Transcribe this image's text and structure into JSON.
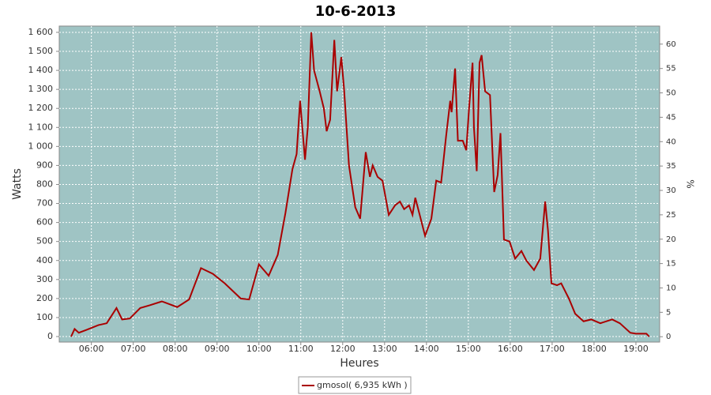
{
  "chart_data": {
    "type": "line",
    "title": "10-6-2013",
    "x_label": "Heures",
    "y_label": "Watts",
    "y2_label": "%",
    "x": [
      "05:31",
      "05:36",
      "05:42",
      "05:53",
      "06:10",
      "06:22",
      "06:36",
      "06:44",
      "06:55",
      "07:10",
      "07:24",
      "07:41",
      "08:03",
      "08:20",
      "08:37",
      "08:54",
      "09:11",
      "09:34",
      "09:46",
      "10:00",
      "10:14",
      "10:27",
      "10:38",
      "10:48",
      "10:54",
      "10:59",
      "11:06",
      "11:10",
      "11:15",
      "11:19",
      "11:27",
      "11:33",
      "11:37",
      "11:42",
      "11:48",
      "11:52",
      "11:58",
      "12:02",
      "12:09",
      "12:18",
      "12:25",
      "12:33",
      "12:39",
      "12:43",
      "12:50",
      "12:57",
      "13:06",
      "13:15",
      "13:22",
      "13:28",
      "13:35",
      "13:40",
      "13:44",
      "13:51",
      "13:58",
      "14:07",
      "14:14",
      "14:21",
      "14:28",
      "14:34",
      "14:36",
      "14:41",
      "14:45",
      "14:52",
      "14:57",
      "15:01",
      "15:06",
      "15:08",
      "15:12",
      "15:16",
      "15:19",
      "15:24",
      "15:31",
      "15:37",
      "15:42",
      "15:46",
      "15:51",
      "15:59",
      "16:07",
      "16:16",
      "16:23",
      "16:34",
      "16:43",
      "16:50",
      "16:54",
      "16:59",
      "17:07",
      "17:13",
      "17:24",
      "17:33",
      "17:45",
      "17:56",
      "18:09",
      "18:26",
      "18:37",
      "18:52",
      "19:00",
      "19:15",
      "19:19"
    ],
    "series": [
      {
        "name": "gmosol( 6,935 kWh )",
        "color": "#aa0000",
        "values": [
          0,
          40,
          20,
          35,
          60,
          70,
          150,
          90,
          95,
          150,
          165,
          185,
          155,
          195,
          360,
          330,
          280,
          200,
          195,
          380,
          320,
          430,
          650,
          880,
          960,
          1240,
          930,
          1100,
          1600,
          1400,
          1290,
          1200,
          1080,
          1140,
          1560,
          1290,
          1470,
          1300,
          900,
          680,
          620,
          970,
          840,
          900,
          840,
          820,
          640,
          690,
          710,
          670,
          690,
          640,
          730,
          630,
          530,
          620,
          820,
          810,
          1050,
          1240,
          1180,
          1410,
          1030,
          1030,
          980,
          1200,
          1440,
          1100,
          870,
          1440,
          1480,
          1290,
          1270,
          760,
          850,
          1070,
          510,
          500,
          410,
          450,
          400,
          350,
          410,
          710,
          560,
          280,
          270,
          280,
          200,
          120,
          80,
          90,
          70,
          90,
          70,
          20,
          15,
          15,
          0
        ]
      }
    ],
    "xlim": [
      "05:14",
      "19:34"
    ],
    "xticks": [
      "06:00",
      "07:00",
      "08:00",
      "09:00",
      "10:00",
      "11:00",
      "12:00",
      "13:00",
      "14:00",
      "15:00",
      "16:00",
      "17:00",
      "18:00",
      "19:00"
    ],
    "ylim": [
      -29,
      1633
    ],
    "yticks": [
      0,
      100,
      200,
      300,
      400,
      500,
      600,
      700,
      800,
      900,
      {
        "value": 1000,
        "label": "1 000"
      },
      {
        "value": 1100,
        "label": "1 100"
      },
      {
        "value": 1200,
        "label": "1 200"
      },
      {
        "value": 1300,
        "label": "1 300"
      },
      {
        "value": 1400,
        "label": "1 400"
      },
      {
        "value": 1500,
        "label": "1 500"
      },
      {
        "value": 1600,
        "label": "1 600"
      }
    ],
    "y2lim": [
      -1.1,
      63.7
    ],
    "y2ticks": [
      0,
      5,
      10,
      15,
      20,
      25,
      30,
      35,
      40,
      45,
      50,
      55,
      60
    ],
    "grid": true,
    "plot_background": "#9fc4c4"
  }
}
